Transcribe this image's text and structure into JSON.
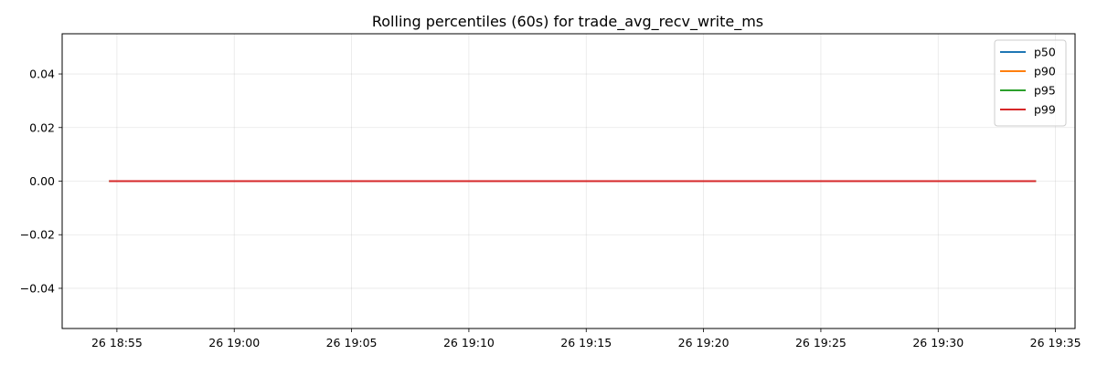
{
  "chart_data": {
    "type": "line",
    "title": "Rolling percentiles (60s) for trade_avg_recv_write_ms",
    "xlabel": "",
    "ylabel": "",
    "x_start": "26 18:54:40",
    "x_end": "26 19:34:10",
    "xlim": [
      "26 18:52:40",
      "26 19:35:50"
    ],
    "ylim": [
      -0.055,
      0.055
    ],
    "x_ticks": [
      "26 18:55",
      "26 19:00",
      "26 19:05",
      "26 19:10",
      "26 19:15",
      "26 19:20",
      "26 19:25",
      "26 19:30",
      "26 19:35"
    ],
    "y_ticks": [
      "0.04",
      "0.02",
      "0.00",
      "−0.02",
      "−0.04"
    ],
    "y_tick_values": [
      0.04,
      0.02,
      0.0,
      -0.02,
      -0.04
    ],
    "grid": true,
    "legend_position": "top-right",
    "series": [
      {
        "name": "p50",
        "color": "#1f77b4",
        "values": [
          0.0,
          0.0
        ]
      },
      {
        "name": "p90",
        "color": "#ff7f0e",
        "values": [
          0.0,
          0.0
        ]
      },
      {
        "name": "p95",
        "color": "#2ca02c",
        "values": [
          0.0,
          0.0
        ]
      },
      {
        "name": "p99",
        "color": "#d62728",
        "values": [
          0.0,
          0.0
        ]
      }
    ]
  }
}
